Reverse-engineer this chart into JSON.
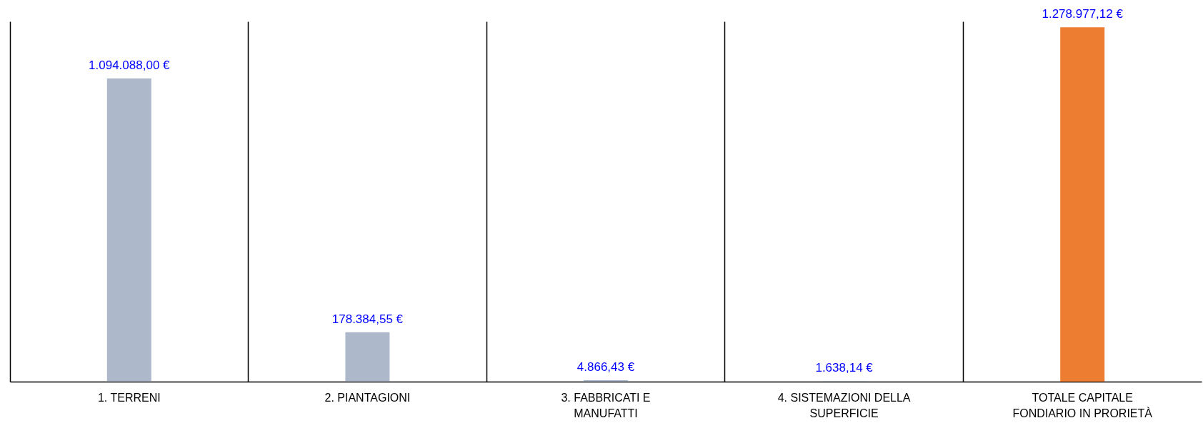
{
  "chart_data": {
    "type": "bar",
    "categories": [
      "1. TERRENI",
      "2. PIANTAGIONI",
      "3. FABBRICATI E MANUFATTI",
      "4. SISTEMAZIONI DELLA SUPERFICIE",
      "TOTALE CAPITALE FONDIARIO IN PRORIETÀ"
    ],
    "values": [
      1094088.0,
      178384.55,
      4866.43,
      1638.14,
      1278977.12
    ],
    "value_labels": [
      "1.094.088,00 €",
      "178.384,55 €",
      "4.866,43 €",
      "1.638,14 €",
      "1.278.977,12 €"
    ],
    "colors": [
      "#adb9ca",
      "#adb9ca",
      "#adb9ca",
      "#adb9ca",
      "#ed7d31"
    ],
    "grid": "x"
  }
}
